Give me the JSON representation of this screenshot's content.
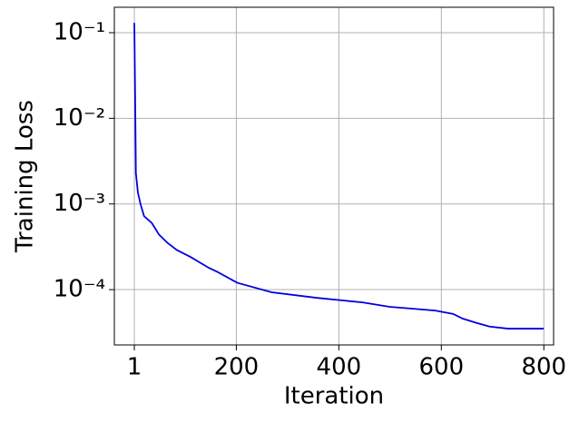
{
  "chart_data": {
    "type": "line",
    "x_label": "Iteration",
    "y_label": "Training Loss",
    "series": [
      {
        "color": "#0000e0",
        "x": [
          1,
          3,
          4,
          8,
          13,
          20,
          35,
          49,
          66,
          84,
          111,
          146,
          164,
          202,
          269,
          358,
          446,
          499,
          588,
          623,
          641,
          668,
          694,
          730,
          800
        ],
        "values": [
          0.13,
          0.01,
          0.0023,
          0.00135,
          0.001,
          0.00072,
          0.0006,
          0.00044,
          0.00035,
          0.00029,
          0.00024,
          0.00018,
          0.00016,
          0.00012,
          9.3e-05,
          8e-05,
          7.1e-05,
          6.3e-05,
          5.7e-05,
          5.2e-05,
          4.6e-05,
          4.1e-05,
          3.7e-05,
          3.5e-05,
          3.5e-05
        ]
      }
    ],
    "xlim": [
      -38,
      819
    ],
    "xticks": [
      1,
      200,
      400,
      600,
      800
    ],
    "ylim": [
      2.26e-05,
      0.198
    ],
    "log_y": true,
    "yticks": [
      {
        "value": 0.1,
        "label": "10⁻¹"
      },
      {
        "value": 0.01,
        "label": "10⁻²"
      },
      {
        "value": 0.001,
        "label": "10⁻³"
      },
      {
        "value": 0.0001,
        "label": "10⁻⁴"
      }
    ],
    "grid": true
  }
}
